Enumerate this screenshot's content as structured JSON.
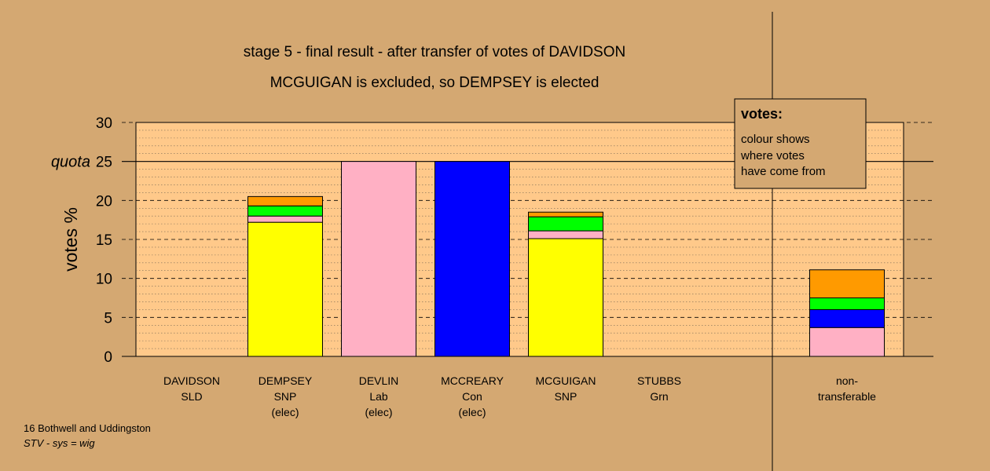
{
  "chart_data": {
    "type": "bar",
    "title": "stage 5 - final result - after transfer of votes of DAVIDSON",
    "subtitle": "MCGUIGAN is excluded, so DEMPSEY is elected",
    "ylabel": "votes %",
    "ylim": [
      0,
      30
    ],
    "yticks": [
      0,
      5,
      10,
      15,
      20,
      25,
      30
    ],
    "quota": 25,
    "quota_label": "quota",
    "grid": true,
    "legend": {
      "placement": "top-right",
      "title": "votes:",
      "lines": [
        "colour shows",
        "where votes",
        "have come from"
      ]
    },
    "colors": {
      "snp": "#ffff00",
      "lab": "#ffb0c4",
      "con": "#0000ff",
      "grn": "#00ff00",
      "sld": "#ff9a00",
      "plot_bg": "#ffc98a",
      "page_bg": "#d4a872"
    },
    "candidates": [
      {
        "label": [
          "DAVIDSON",
          "SLD"
        ],
        "segments": []
      },
      {
        "label": [
          "DEMPSEY",
          "SNP",
          "(elec)"
        ],
        "segments": [
          {
            "source": "snp",
            "value": 17.2
          },
          {
            "source": "lab",
            "value": 0.8
          },
          {
            "source": "grn",
            "value": 1.3
          },
          {
            "source": "sld",
            "value": 1.2
          }
        ]
      },
      {
        "label": [
          "DEVLIN",
          "Lab",
          "(elec)"
        ],
        "segments": [
          {
            "source": "lab",
            "value": 25.0
          }
        ]
      },
      {
        "label": [
          "MCCREARY",
          "Con",
          "(elec)"
        ],
        "segments": [
          {
            "source": "con",
            "value": 25.0
          }
        ]
      },
      {
        "label": [
          "MCGUIGAN",
          "SNP"
        ],
        "segments": [
          {
            "source": "snp",
            "value": 15.1
          },
          {
            "source": "lab",
            "value": 1.0
          },
          {
            "source": "grn",
            "value": 1.8
          },
          {
            "source": "sld",
            "value": 0.6
          }
        ]
      },
      {
        "label": [
          "STUBBS",
          "Grn"
        ],
        "segments": []
      }
    ],
    "nontransferable": {
      "label": [
        "non-",
        "transferable"
      ],
      "segments": [
        {
          "source": "lab",
          "value": 3.7
        },
        {
          "source": "con",
          "value": 2.3
        },
        {
          "source": "grn",
          "value": 1.5
        },
        {
          "source": "sld",
          "value": 3.6
        }
      ]
    }
  },
  "footer": {
    "line1": "16 Bothwell and Uddingston",
    "line2": "STV - sys = wig"
  }
}
